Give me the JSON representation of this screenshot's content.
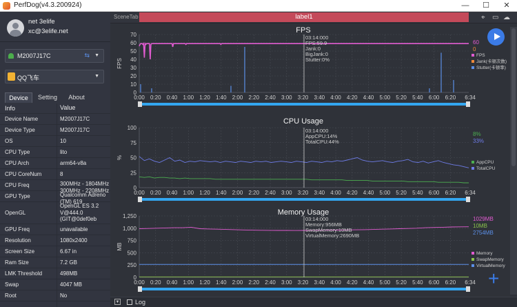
{
  "window": {
    "title": "PerfDog(v4.3.200924)",
    "minimize": "—",
    "maximize": "☐",
    "close": "✕"
  },
  "user": {
    "name": "net 3elife",
    "email": "xc@3elife.net"
  },
  "device_select": {
    "value": "M2007J17C"
  },
  "app_select": {
    "value": "QQ飞车"
  },
  "tabs": [
    "Device",
    "Setting",
    "About"
  ],
  "info": {
    "header": {
      "k": "Info",
      "v": "Value"
    },
    "rows": [
      {
        "k": "Device Name",
        "v": "M2007J17C"
      },
      {
        "k": "Device Type",
        "v": "M2007J17C"
      },
      {
        "k": "OS",
        "v": "10"
      },
      {
        "k": "CPU Type",
        "v": "lito"
      },
      {
        "k": "CPU Arch",
        "v": "arm64-v8a"
      },
      {
        "k": "CPU CoreNum",
        "v": "8"
      },
      {
        "k": "CPU Freq",
        "v": "300MHz - 1804MHz\n300MHz - 2208MHz"
      },
      {
        "k": "GPU Type",
        "v": "Qualcomm Adreno\n(TM) 619"
      },
      {
        "k": "OpenGL",
        "v": "OpenGL ES 3.2\nV@444.0\n(GIT@0def0eb"
      },
      {
        "k": "GPU Freq",
        "v": "unavailable"
      },
      {
        "k": "Resolution",
        "v": "1080x2400"
      },
      {
        "k": "Screen Size",
        "v": "6.67 in"
      },
      {
        "k": "Ram Size",
        "v": "7.2 GB"
      },
      {
        "k": "LMK Threshold",
        "v": "498MB"
      },
      {
        "k": "Swap",
        "v": "4047 MB"
      },
      {
        "k": "Root",
        "v": "No"
      }
    ]
  },
  "scene": {
    "tab_label": "SceneTab",
    "label": "label1"
  },
  "bottom": {
    "log_label": "Log"
  },
  "colors": {
    "fps": "#e05bd0",
    "jank": "#f08a3a",
    "stutter": "#5b8fe8",
    "app_cpu": "#4caf50",
    "total_cpu": "#6e7ce8",
    "memory": "#e05bd0",
    "swap": "#8bc34a",
    "virtual": "#5b8fe8",
    "timeline": "#33a6f0",
    "label_tab": "#c44a5a"
  },
  "chart_data": [
    {
      "type": "line",
      "title": "FPS",
      "ylabel": "FPS",
      "ylim": [
        0,
        70
      ],
      "yticks": [
        0,
        10,
        20,
        30,
        40,
        50,
        60,
        70
      ],
      "xticks": [
        "0:00",
        "0:20",
        "0:40",
        "1:00",
        "1:20",
        "1:40",
        "2:00",
        "2:20",
        "2:40",
        "3:00",
        "3:20",
        "3:40",
        "4:00",
        "4:20",
        "4:40",
        "5:00",
        "5:20",
        "5:40",
        "6:00",
        "6:20"
      ],
      "x_end_label": "6:34",
      "tooltip": [
        "03:14:000",
        "FPS:59.9",
        "Jank:0",
        "BigJank:0",
        "Stutter:0%"
      ],
      "legend": [
        "FPS",
        "Jank(卡顿次数)",
        "Stutter(卡顿率)"
      ],
      "current_values": [
        "60",
        "0"
      ],
      "series": [
        {
          "name": "FPS",
          "values": [
            56,
            58,
            59,
            59,
            59,
            58,
            59,
            42,
            59,
            58,
            59,
            59,
            59,
            59,
            59,
            40,
            58,
            59,
            59,
            59,
            59,
            59,
            59,
            59,
            59,
            59,
            59,
            59,
            59,
            59,
            59,
            59,
            59,
            59,
            59,
            59,
            59,
            59,
            59,
            59,
            59,
            59,
            59,
            59,
            59,
            59,
            55,
            59,
            59,
            59,
            59,
            59,
            59,
            59,
            59,
            59,
            59,
            59,
            59,
            59,
            59,
            59,
            59,
            59,
            58,
            59,
            59,
            59,
            59,
            59,
            59,
            59,
            59,
            59,
            59,
            59,
            59,
            59,
            59,
            59,
            59,
            59,
            59,
            59,
            59,
            59,
            59,
            59,
            59,
            59,
            59,
            59,
            59,
            59,
            59,
            59,
            59,
            59,
            59,
            59,
            59,
            59,
            59,
            59,
            59,
            59,
            59,
            59,
            59,
            59,
            59,
            59,
            58,
            59,
            59,
            59,
            59,
            59,
            59,
            59,
            59,
            59,
            59,
            59,
            59,
            59,
            59,
            59,
            59,
            59,
            59,
            59,
            59,
            59,
            59,
            59,
            59,
            59,
            59,
            59,
            59,
            59,
            59,
            59,
            59,
            59,
            59,
            59,
            59,
            59,
            59,
            59,
            59,
            59,
            59,
            59,
            59,
            59,
            59,
            59,
            59,
            59,
            59,
            59,
            59,
            59,
            59,
            59,
            59,
            59,
            59,
            59,
            59,
            59,
            59,
            59,
            59,
            59,
            59,
            59,
            59,
            59,
            59,
            59,
            59,
            59,
            59,
            59,
            59,
            59,
            59,
            59,
            59,
            59,
            59,
            59,
            59,
            59,
            59,
            59,
            59,
            59,
            59,
            59,
            59,
            59,
            59,
            59,
            59,
            59,
            59,
            59,
            59,
            59,
            59,
            59,
            59,
            59,
            59,
            59,
            59,
            59,
            59,
            59,
            59,
            59,
            59,
            59,
            59,
            59,
            59,
            59,
            59,
            59,
            59,
            59,
            59,
            59,
            59,
            59,
            59,
            59,
            59,
            59,
            59,
            59,
            59,
            59,
            59,
            59,
            59,
            59,
            59,
            59,
            59,
            59,
            59,
            59,
            59,
            59,
            59,
            59,
            59,
            59,
            59,
            59,
            59,
            59,
            59,
            59,
            59,
            59,
            59,
            59,
            59,
            59,
            59,
            59,
            59,
            59,
            59,
            59,
            59,
            59,
            59,
            59,
            59,
            59,
            59,
            59,
            59,
            59,
            59,
            59,
            59,
            59,
            59,
            59,
            59,
            59,
            59,
            59,
            59,
            59,
            59,
            59,
            59,
            59,
            59,
            59,
            59,
            59,
            59,
            59,
            59,
            59,
            59,
            59,
            59,
            59,
            59,
            59,
            59,
            59,
            59,
            59,
            59,
            59,
            59,
            59,
            59,
            59,
            59,
            59,
            59,
            59,
            59,
            59,
            59,
            59,
            59,
            59,
            59,
            59,
            59,
            59,
            59,
            59,
            59,
            59,
            59,
            59,
            59,
            59,
            59,
            59,
            59,
            59,
            59,
            59,
            59,
            59,
            59,
            59,
            59,
            59,
            59,
            59,
            59,
            59,
            59,
            59,
            59,
            59,
            59,
            59,
            59,
            59,
            59,
            59,
            59,
            59,
            59,
            59,
            59,
            59,
            59,
            59,
            59,
            59,
            59,
            59,
            59,
            59,
            59,
            59,
            59,
            59,
            59,
            59,
            59,
            59,
            59,
            59,
            59,
            59,
            59,
            59,
            59,
            59,
            59,
            59,
            59,
            59,
            59,
            59,
            59,
            59,
            59,
            59,
            59,
            59,
            59,
            59,
            59,
            59,
            59,
            59,
            59,
            59,
            59,
            59,
            59,
            59,
            59,
            59,
            59,
            59,
            59,
            59,
            59,
            59,
            59,
            59,
            59,
            59,
            59,
            59,
            59,
            59,
            59,
            59,
            59
          ]
        },
        {
          "name": "Jank",
          "values": []
        },
        {
          "name": "Stutter",
          "values": []
        }
      ]
    },
    {
      "type": "line",
      "title": "CPU Usage",
      "ylabel": "%",
      "ylim": [
        0,
        100
      ],
      "yticks": [
        0,
        25,
        50,
        75,
        100
      ],
      "xticks": [
        "0:00",
        "0:20",
        "0:40",
        "1:00",
        "1:20",
        "1:40",
        "2:00",
        "2:20",
        "2:40",
        "3:00",
        "3:20",
        "3:40",
        "4:00",
        "4:20",
        "4:40",
        "5:00",
        "5:20",
        "5:40",
        "6:00",
        "6:20"
      ],
      "x_end_label": "6:34",
      "tooltip": [
        "03:14:000",
        "AppCPU:14%",
        "TotalCPU:44%"
      ],
      "legend": [
        "AppCPU",
        "TotalCPU"
      ],
      "current_values": [
        "8%",
        "33%"
      ],
      "series": [
        {
          "name": "AppCPU",
          "values": [
            18,
            17,
            18,
            16,
            17,
            17,
            16,
            16,
            15,
            16,
            15,
            15,
            15,
            15,
            15,
            14,
            14,
            14,
            14,
            14,
            14,
            14,
            14,
            14,
            14,
            14,
            14,
            14,
            14,
            14,
            14,
            14,
            14,
            14,
            13,
            13,
            13,
            13,
            13,
            13,
            13,
            12,
            12,
            12,
            12,
            12,
            11,
            11,
            11,
            11,
            11,
            11,
            11,
            10,
            10,
            10,
            10,
            10,
            10,
            9,
            9,
            9,
            9,
            9,
            8,
            8
          ]
        },
        {
          "name": "TotalCPU",
          "values": [
            52,
            45,
            48,
            44,
            42,
            46,
            50,
            44,
            46,
            42,
            44,
            43,
            45,
            44,
            43,
            44,
            42,
            44,
            43,
            42,
            44,
            43,
            42,
            44,
            43,
            44,
            42,
            43,
            44,
            43,
            42,
            44,
            43,
            42,
            44,
            43,
            42,
            44,
            43,
            45,
            44,
            46,
            48,
            50,
            46,
            44,
            43,
            44,
            45,
            43,
            42,
            44,
            45,
            47,
            43,
            42,
            44,
            41,
            43,
            45,
            42,
            40,
            38,
            37,
            35,
            33
          ]
        }
      ]
    },
    {
      "type": "line",
      "title": "Memory Usage",
      "ylabel": "MB",
      "ylim": [
        0,
        1250
      ],
      "yticks": [
        0,
        250,
        500,
        750,
        1000,
        1250
      ],
      "xticks": [
        "0:00",
        "0:20",
        "0:40",
        "1:00",
        "1:20",
        "1:40",
        "2:00",
        "2:20",
        "2:40",
        "3:00",
        "3:20",
        "3:40",
        "4:00",
        "4:20",
        "4:40",
        "5:00",
        "5:20",
        "5:40",
        "6:00",
        "6:20"
      ],
      "x_end_label": "6:34",
      "tooltip": [
        "03:14:000",
        "Memory:956MB",
        "SwapMemory:10MB",
        "VirtualMemory:2690MB"
      ],
      "legend": [
        "Memory",
        "SwapMemory",
        "VirtualMemory"
      ],
      "current_values": [
        "1029MB",
        "10MB",
        "2754MB"
      ],
      "series": [
        {
          "name": "Memory",
          "values": [
            990,
            995,
            1000,
            1005,
            1010,
            1010,
            1020,
            990,
            985,
            980,
            975,
            970,
            965,
            960,
            958,
            956,
            955,
            955,
            954,
            955,
            956,
            958,
            960,
            962,
            965,
            968,
            970,
            975,
            980,
            985,
            990,
            995,
            1000,
            1010,
            1015,
            1020,
            1025,
            1028,
            1029
          ]
        },
        {
          "name": "SwapMemory",
          "values": [
            10,
            10,
            10,
            10,
            10,
            10,
            10,
            10,
            10,
            10,
            10,
            10,
            10,
            10,
            10,
            10,
            10,
            10,
            10,
            10,
            10,
            10,
            10,
            10,
            10,
            10,
            10,
            10,
            10,
            10,
            10,
            10,
            10,
            10,
            10,
            10,
            10,
            10,
            10
          ]
        },
        {
          "name": "VirtualMemory",
          "values": []
        }
      ]
    }
  ]
}
